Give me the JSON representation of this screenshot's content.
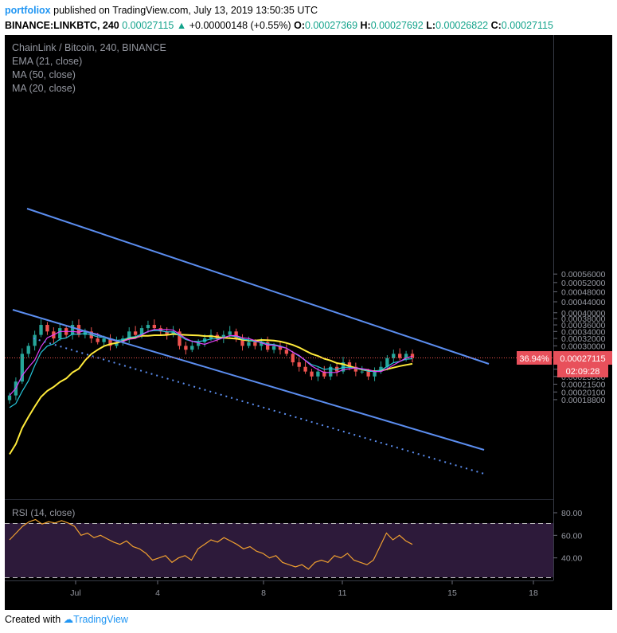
{
  "header": {
    "publisher": "portfoliox",
    "published_text": " published on TradingView.com, July 13, 2019 13:50:35 UTC",
    "symbol": "BINANCE:LINKBTC, 240",
    "change_arrow": "▲",
    "change": "+0.00000148 (+0.55%)",
    "last": "0.00027115",
    "ohlc": [
      {
        "label": "O:",
        "value": "0.00027369"
      },
      {
        "label": "H:",
        "value": "0.00027692"
      },
      {
        "label": "L:",
        "value": "0.00026822"
      },
      {
        "label": "C:",
        "value": "0.00027115"
      }
    ]
  },
  "legend": {
    "title": "ChainLink / Bitcoin, 240, BINANCE",
    "items": [
      "EMA (21, close)",
      "MA (50, close)",
      "MA (20, close)"
    ]
  },
  "rsi_label": "RSI (14, close)",
  "price_tag": {
    "percent": "36.94%",
    "price": "0.00027115",
    "countdown": "02:09:28"
  },
  "footer": {
    "created_with": "Created with",
    "brand": "TradingView"
  },
  "colors": {
    "up": "#26a69a",
    "down": "#ef5350",
    "ema21": "#26c6da",
    "ma50": "#ffeb3b",
    "ma20": "#e040fb",
    "channel": "#5b8def",
    "rsi": "#f0a030",
    "rsi_band": "#2d1a3a",
    "tag": "#e8505b"
  },
  "chart_data": {
    "type": "candlestick",
    "title": "ChainLink / Bitcoin, 240, BINANCE",
    "price_axis": {
      "ticks": [
        "0.00056000",
        "0.00052000",
        "0.00048000",
        "0.00044000",
        "0.00040000",
        "0.00038000",
        "0.00036000",
        "0.00034000",
        "0.00032000",
        "0.00030000",
        "0.00028000",
        "0.00024500",
        "0.00023000",
        "0.00021500",
        "0.00020100",
        "0.00018800"
      ],
      "range": [
        0.000185,
        0.00058
      ]
    },
    "time_axis": {
      "ticks": [
        "Jul",
        "4",
        "8",
        "11",
        "15",
        "18"
      ]
    },
    "candles_close": [
      0.000195,
      0.00022,
      0.00028,
      0.0003,
      0.00033,
      0.00036,
      0.00034,
      0.00032,
      0.00035,
      0.00033,
      0.00036,
      0.00033,
      0.00034,
      0.00032,
      0.00031,
      0.00032,
      0.0003,
      0.00031,
      0.00032,
      0.00034,
      0.00033,
      0.00035,
      0.00036,
      0.00035,
      0.00034,
      0.00033,
      0.00034,
      0.0003,
      0.00029,
      0.0003,
      0.00031,
      0.00032,
      0.00033,
      0.00032,
      0.00033,
      0.00034,
      0.00032,
      0.0003,
      0.00031,
      0.0003,
      0.00031,
      0.00029,
      0.0003,
      0.00029,
      0.00028,
      0.00026,
      0.00025,
      0.00024,
      0.00023,
      0.00024,
      0.00023,
      0.00025,
      0.00024,
      0.00026,
      0.00025,
      0.00024,
      0.00024,
      0.00023,
      0.00024,
      0.00025,
      0.00027,
      0.00028,
      0.00027,
      0.00028,
      0.000271
    ],
    "rsi": {
      "levels": [
        80,
        60,
        40
      ],
      "band": [
        70,
        30
      ],
      "values": [
        56,
        62,
        68,
        72,
        74,
        70,
        72,
        71,
        73,
        71,
        68,
        60,
        62,
        58,
        60,
        57,
        54,
        52,
        55,
        50,
        48,
        44,
        38,
        40,
        42,
        36,
        40,
        42,
        38,
        48,
        52,
        56,
        54,
        58,
        55,
        52,
        48,
        50,
        46,
        44,
        40,
        42,
        36,
        34,
        32,
        34,
        30,
        36,
        38,
        36,
        42,
        40,
        44,
        38,
        36,
        34,
        38,
        50,
        62,
        56,
        60,
        55,
        52
      ]
    }
  }
}
